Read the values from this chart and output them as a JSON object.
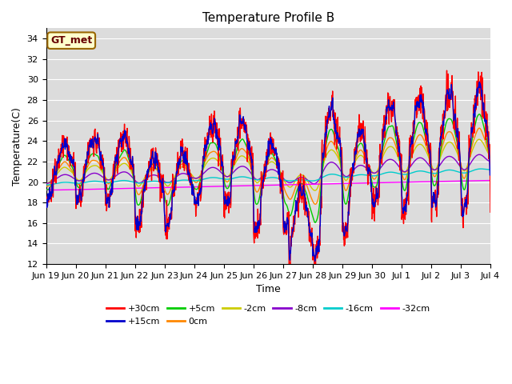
{
  "title": "Temperature Profile B",
  "xlabel": "Time",
  "ylabel": "Temperature(C)",
  "ylim": [
    12,
    35
  ],
  "yticks": [
    12,
    14,
    16,
    18,
    20,
    22,
    24,
    26,
    28,
    30,
    32,
    34
  ],
  "annotation_text": "GT_met",
  "annotation_bg": "#ffffcc",
  "annotation_border": "#996600",
  "series_colors": {
    "+30cm": "#ff0000",
    "+15cm": "#0000cc",
    "+5cm": "#00cc00",
    "0cm": "#ff8800",
    "-2cm": "#cccc00",
    "-8cm": "#8800cc",
    "-16cm": "#00cccc",
    "-32cm": "#ff00ff"
  },
  "xtick_labels": [
    "Jun 19",
    "Jun 20",
    "Jun 21",
    "Jun 22",
    "Jun 23",
    "Jun 24",
    "Jun 25",
    "Jun 26",
    "Jun 27",
    "Jun 28",
    "Jun 29",
    "Jun 30",
    "Jul 1",
    "Jul 2",
    "Jul 3",
    "Jul 4"
  ],
  "n_points": 1440
}
